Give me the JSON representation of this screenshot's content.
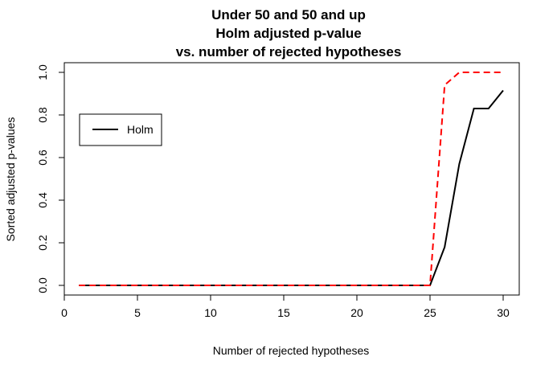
{
  "chart_data": {
    "type": "line",
    "title": [
      "Under 50 and 50 and up",
      "Holm adjusted p-value",
      "vs. number of rejected hypotheses"
    ],
    "xlabel": "Number of rejected hypotheses",
    "ylabel": "Sorted adjusted p-values",
    "xlim": [
      1,
      30
    ],
    "ylim": [
      0,
      1
    ],
    "x_ticks": [
      0,
      5,
      10,
      15,
      20,
      25,
      30
    ],
    "y_ticks": [
      "0.0",
      "0.2",
      "0.4",
      "0.6",
      "0.8",
      "1.0"
    ],
    "grid": false,
    "legend": {
      "position": "left",
      "entries": [
        "Holm"
      ]
    },
    "series": [
      {
        "name": "Holm",
        "color": "#000000",
        "dash": "solid",
        "x": [
          1,
          2,
          3,
          4,
          5,
          6,
          7,
          8,
          9,
          10,
          11,
          12,
          13,
          14,
          15,
          16,
          17,
          18,
          19,
          20,
          21,
          22,
          23,
          24,
          25,
          26,
          27,
          28,
          29,
          30
        ],
        "y": [
          0,
          0,
          0,
          0,
          0,
          0,
          0,
          0,
          0,
          0,
          0,
          0,
          0,
          0,
          0,
          0,
          0,
          0,
          0,
          0,
          0,
          0,
          0,
          0,
          0,
          0.18,
          0.57,
          0.83,
          0.83,
          0.915
        ]
      },
      {
        "color": "#ff0000",
        "dash": "dashed",
        "x": [
          1,
          2,
          3,
          4,
          5,
          6,
          7,
          8,
          9,
          10,
          11,
          12,
          13,
          14,
          15,
          16,
          17,
          18,
          19,
          20,
          21,
          22,
          23,
          24,
          25,
          26,
          27,
          28,
          29,
          30
        ],
        "y": [
          0,
          0,
          0,
          0,
          0,
          0,
          0,
          0,
          0,
          0,
          0,
          0,
          0,
          0,
          0,
          0,
          0,
          0,
          0,
          0,
          0,
          0,
          0,
          0,
          0,
          0.94,
          1,
          1,
          1,
          1
        ]
      }
    ]
  }
}
